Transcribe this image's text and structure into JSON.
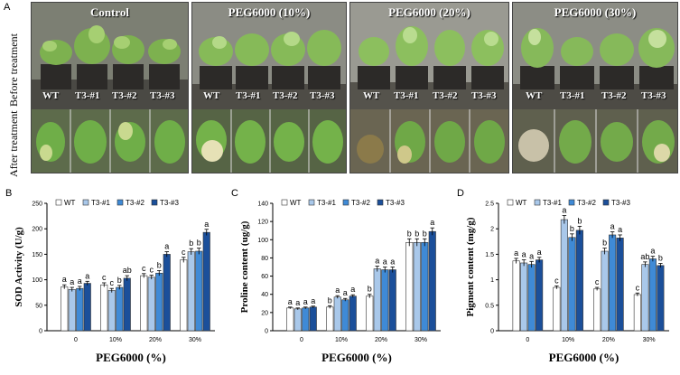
{
  "panel_a": {
    "letter": "A",
    "row_labels": {
      "before": "Before treatment",
      "after": "After treatment"
    },
    "treatments": [
      {
        "title": "Control",
        "pots": [
          "WT",
          "T3-#1",
          "T3-#2",
          "T3-#3"
        ]
      },
      {
        "title": "PEG6000 (10%)",
        "pots": [
          "WT",
          "T3-#1",
          "T3-#2",
          "T3-#3"
        ]
      },
      {
        "title": "PEG6000 (20%)",
        "pots": [
          "WT",
          "T3-#1",
          "T3-#2",
          "T3-#3"
        ]
      },
      {
        "title": "PEG6000 (30%)",
        "pots": [
          "WT",
          "T3-#1",
          "T3-#2",
          "T3-#3"
        ]
      }
    ]
  },
  "colors": {
    "wt": "#ffffff",
    "t1": "#a9c8ea",
    "t2": "#3f8ad6",
    "t3": "#1b4f9a",
    "stroke": "#333333"
  },
  "chart_data": [
    {
      "id": "B",
      "type": "bar",
      "title": "",
      "ylabel": "SOD Activity (U/g)",
      "xlabel": "PEG6000 (%)",
      "categories": [
        "0",
        "10%",
        "20%",
        "30%"
      ],
      "ylim": [
        0,
        250
      ],
      "yticks": [
        "0",
        "50",
        "100",
        "150",
        "200",
        "250"
      ],
      "legend": [
        "WT",
        "T3-#1",
        "T3-#2",
        "T3-#3"
      ],
      "series": [
        {
          "name": "WT",
          "values": [
            86,
            90,
            108,
            139
          ],
          "errors": [
            4,
            4,
            4,
            5
          ],
          "letters": [
            "a",
            "c",
            "c",
            "c"
          ]
        },
        {
          "name": "T3-#1",
          "values": [
            81,
            79,
            105,
            155
          ],
          "errors": [
            4,
            4,
            4,
            6
          ],
          "letters": [
            "a",
            "c",
            "c",
            "b"
          ]
        },
        {
          "name": "T3-#2",
          "values": [
            83,
            85,
            113,
            156
          ],
          "errors": [
            4,
            4,
            5,
            6
          ],
          "letters": [
            "a",
            "b",
            "b",
            "b"
          ]
        },
        {
          "name": "T3-#3",
          "values": [
            93,
            103,
            150,
            193
          ],
          "errors": [
            4,
            5,
            5,
            6
          ],
          "letters": [
            "a",
            "ab",
            "a",
            "a"
          ]
        }
      ]
    },
    {
      "id": "C",
      "type": "bar",
      "title": "",
      "ylabel": "Proline content (ug/g)",
      "xlabel": "PEG6000 (%)",
      "categories": [
        "0",
        "10%",
        "20%",
        "30%"
      ],
      "ylim": [
        0,
        140
      ],
      "yticks": [
        "0",
        "20",
        "40",
        "60",
        "80",
        "100",
        "120",
        "140"
      ],
      "legend": [
        "WT",
        "T3-#1",
        "T3-#2",
        "T3-#3"
      ],
      "series": [
        {
          "name": "WT",
          "values": [
            25,
            26,
            38,
            97
          ],
          "errors": [
            1,
            1.5,
            2,
            4
          ],
          "letters": [
            "a",
            "b",
            "b",
            "b"
          ]
        },
        {
          "name": "T3-#1",
          "values": [
            24,
            37,
            68,
            97
          ],
          "errors": [
            1,
            1.5,
            3,
            4
          ],
          "letters": [
            "a",
            "a",
            "a",
            "b"
          ]
        },
        {
          "name": "T3-#2",
          "values": [
            25,
            34,
            67,
            97
          ],
          "errors": [
            1,
            1.5,
            3,
            4
          ],
          "letters": [
            "a",
            "a",
            "a",
            "b"
          ]
        },
        {
          "name": "T3-#3",
          "values": [
            26,
            38,
            67,
            109
          ],
          "errors": [
            1,
            1.5,
            3,
            4
          ],
          "letters": [
            "a",
            "a",
            "a",
            "a"
          ]
        }
      ]
    },
    {
      "id": "D",
      "type": "bar",
      "title": "",
      "ylabel": "Pigment content (mg/g)",
      "xlabel": "PEG6000 (%)",
      "categories": [
        "0",
        "10%",
        "20%",
        "30%"
      ],
      "ylim": [
        0,
        2.5
      ],
      "yticks": [
        "0",
        "0.5",
        "1",
        "1.5",
        "2",
        "2.5"
      ],
      "legend": [
        "WT",
        "T3-#1",
        "T3-#2",
        "T3-#3"
      ],
      "series": [
        {
          "name": "WT",
          "values": [
            1.37,
            0.85,
            0.82,
            0.71
          ],
          "errors": [
            0.05,
            0.03,
            0.03,
            0.03
          ],
          "letters": [
            "a",
            "c",
            "c",
            "c"
          ]
        },
        {
          "name": "T3-#1",
          "values": [
            1.33,
            2.18,
            1.56,
            1.3
          ],
          "errors": [
            0.06,
            0.08,
            0.06,
            0.05
          ],
          "letters": [
            "a",
            "a",
            "b",
            "ab"
          ]
        },
        {
          "name": "T3-#2",
          "values": [
            1.3,
            1.83,
            1.88,
            1.41
          ],
          "errors": [
            0.06,
            0.07,
            0.06,
            0.05
          ],
          "letters": [
            "a",
            "b",
            "a",
            "a"
          ]
        },
        {
          "name": "T3-#3",
          "values": [
            1.39,
            1.97,
            1.82,
            1.28
          ],
          "errors": [
            0.05,
            0.08,
            0.06,
            0.04
          ],
          "letters": [
            "a",
            "b",
            "a",
            "b"
          ]
        }
      ]
    }
  ]
}
